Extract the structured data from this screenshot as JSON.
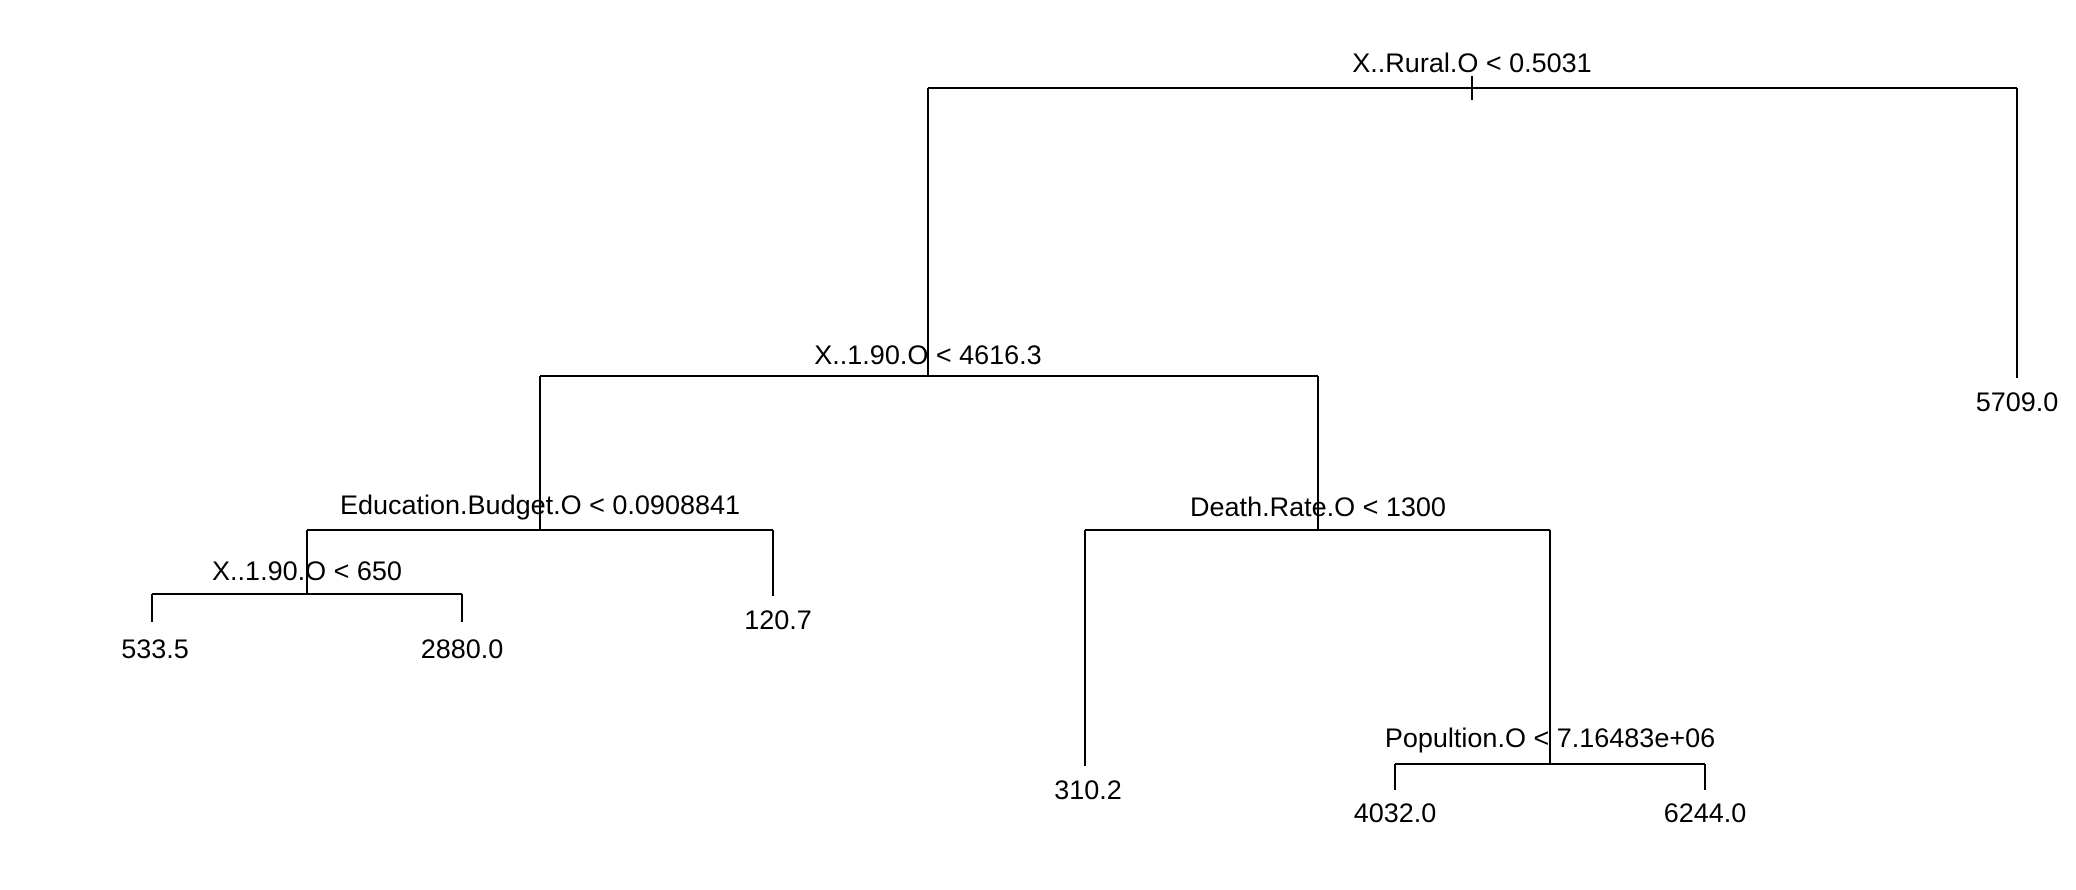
{
  "tree": {
    "line_color": "#000000",
    "splits": {
      "root": "X..Rural.O < 0.5031",
      "left_child": "X..1.90.O < 4616.3",
      "education_split": "Education.Budget.O < 0.0908841",
      "death_rate_split": "Death.Rate.O < 1300",
      "x190_small_split": "X..1.90.O < 650",
      "population_split": "Popultion.O < 7.16483e+06"
    },
    "leaves": {
      "leaf_1": "533.5",
      "leaf_2": "2880.0",
      "leaf_3": "120.7",
      "leaf_4": "310.2",
      "leaf_5": "4032.0",
      "leaf_6": "6244.0",
      "leaf_7": "5709.0"
    }
  }
}
